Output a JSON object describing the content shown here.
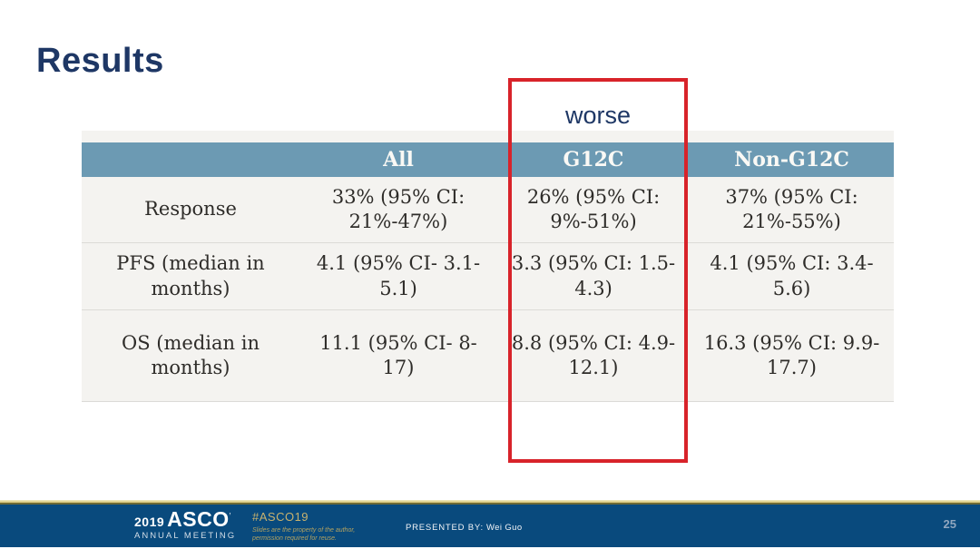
{
  "slide": {
    "title": "Results",
    "annotation": "worse"
  },
  "table": {
    "columns": [
      "",
      "All",
      "G12C",
      "Non-G12C"
    ],
    "rows": [
      {
        "label": "Response",
        "all": "33% (95% CI: 21%-47%)",
        "g12c": "26% (95% CI: 9%-51%)",
        "non_g12c": "37% (95% CI: 21%-55%)"
      },
      {
        "label": "PFS (median in months)",
        "all": "4.1 (95% CI- 3.1-5.1)",
        "g12c": "3.3 (95% CI: 1.5-4.3)",
        "non_g12c": "4.1 (95% CI: 3.4-5.6)"
      },
      {
        "label": "OS (median in months)",
        "all": "11.1 (95% CI- 8-17)",
        "g12c": "8.8 (95% CI: 4.9-12.1)",
        "non_g12c": "16.3 (95% CI: 9.9-17.7)"
      }
    ],
    "highlighted_column": "G12C"
  },
  "footer": {
    "year": "2019",
    "org": "ASCO",
    "org_mark": "ʼ",
    "org_sub": "ANNUAL MEETING",
    "hashtag": "#ASCO19",
    "disclaimer_line1": "Slides are the property of the author,",
    "disclaimer_line2": "permission required for reuse.",
    "presented_by_label": "PRESENTED BY:",
    "presenter": "Wei Guo",
    "page_number": "25"
  },
  "colors": {
    "header_bg": "#6c9ab3",
    "table_bg": "#f4f3f0",
    "accent_red": "#d8232a",
    "title_navy": "#1e3765",
    "footer_navy": "#094a7d",
    "footer_gold": "#c8b26e"
  }
}
